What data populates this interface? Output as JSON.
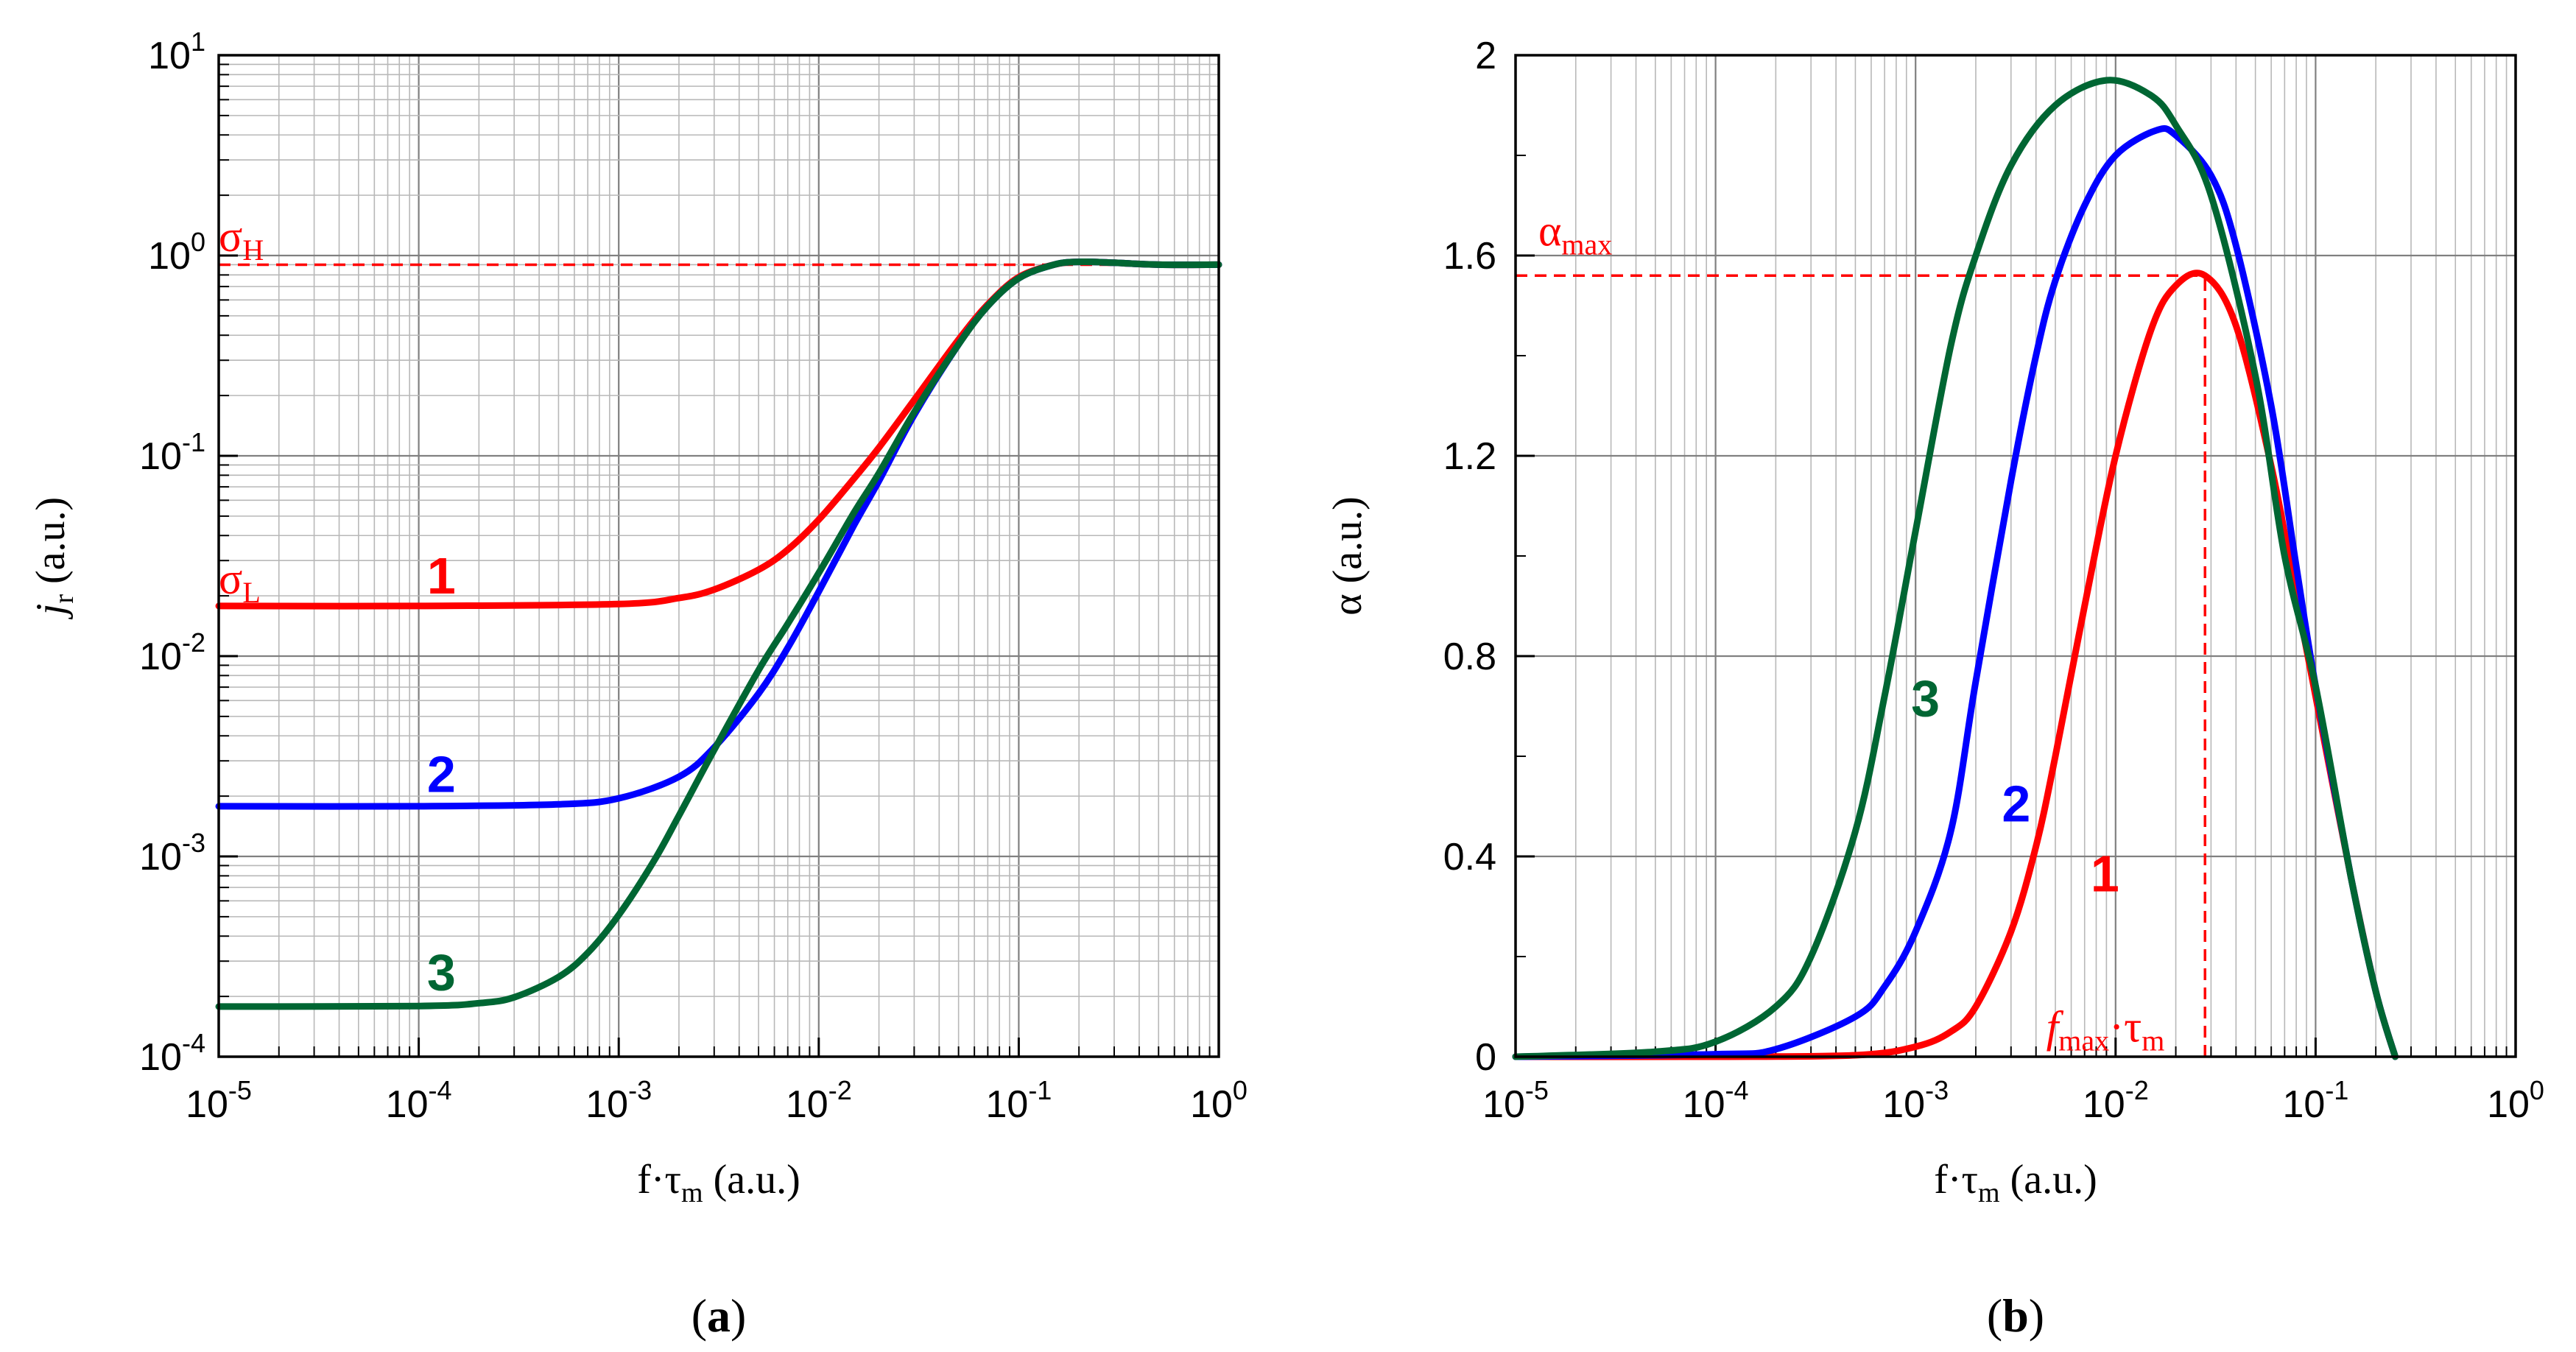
{
  "chart_data": [
    {
      "type": "line",
      "panel_label": "(a)",
      "panel_letter": "a",
      "xscale": "log",
      "yscale": "log",
      "xlim": [
        1e-05,
        1
      ],
      "ylim": [
        0.0001,
        10
      ],
      "xticks": [
        {
          "value": 1e-05,
          "base": "10",
          "exp": "-5"
        },
        {
          "value": 0.0001,
          "base": "10",
          "exp": "-4"
        },
        {
          "value": 0.001,
          "base": "10",
          "exp": "-3"
        },
        {
          "value": 0.01,
          "base": "10",
          "exp": "-2"
        },
        {
          "value": 0.1,
          "base": "10",
          "exp": "-1"
        },
        {
          "value": 1,
          "base": "10",
          "exp": "0"
        }
      ],
      "yticks": [
        {
          "value": 0.0001,
          "base": "10",
          "exp": "-4"
        },
        {
          "value": 0.001,
          "base": "10",
          "exp": "-3"
        },
        {
          "value": 0.01,
          "base": "10",
          "exp": "-2"
        },
        {
          "value": 0.1,
          "base": "10",
          "exp": "-1"
        },
        {
          "value": 1,
          "base": "10",
          "exp": "0"
        },
        {
          "value": 10,
          "base": "10",
          "exp": "1"
        }
      ],
      "xlabel": {
        "main": "f·τ",
        "sub": "m",
        "unit": " (a.u.)"
      },
      "ylabel": {
        "main": "j",
        "sub": "r",
        "unit": " (a.u.)"
      },
      "series": [
        {
          "name": "1",
          "color": "#ff0000",
          "x": [
            1e-05,
            0.0001,
            0.001,
            0.002,
            0.003,
            0.005,
            0.007,
            0.01,
            0.015,
            0.02,
            0.03,
            0.05,
            0.07,
            0.1,
            0.15,
            0.2,
            0.3,
            0.5,
            1
          ],
          "y": [
            0.0178,
            0.0178,
            0.0182,
            0.0195,
            0.0215,
            0.027,
            0.034,
            0.048,
            0.077,
            0.11,
            0.19,
            0.38,
            0.57,
            0.78,
            0.9,
            0.93,
            0.92,
            0.9,
            0.9
          ]
        },
        {
          "name": "2",
          "color": "#0000ff",
          "x": [
            1e-05,
            0.0001,
            0.0005,
            0.001,
            0.002,
            0.003,
            0.005,
            0.007,
            0.01,
            0.015,
            0.02,
            0.03,
            0.05,
            0.07,
            0.1,
            0.15,
            0.2,
            0.3,
            0.5,
            1
          ],
          "y": [
            0.00178,
            0.00178,
            0.00182,
            0.00195,
            0.0025,
            0.0035,
            0.0065,
            0.011,
            0.021,
            0.045,
            0.075,
            0.16,
            0.36,
            0.56,
            0.77,
            0.9,
            0.93,
            0.92,
            0.9,
            0.9
          ]
        },
        {
          "name": "3",
          "color": "#006633",
          "x": [
            1e-05,
            0.0001,
            0.0002,
            0.0003,
            0.0005,
            0.0007,
            0.001,
            0.0015,
            0.002,
            0.003,
            0.005,
            0.007,
            0.01,
            0.015,
            0.02,
            0.03,
            0.05,
            0.07,
            0.1,
            0.15,
            0.2,
            0.3,
            0.5,
            1
          ],
          "y": [
            0.000178,
            0.000179,
            0.000185,
            0.000198,
            0.00025,
            0.00033,
            0.00051,
            0.00095,
            0.0016,
            0.0034,
            0.0085,
            0.0145,
            0.026,
            0.052,
            0.082,
            0.165,
            0.36,
            0.56,
            0.77,
            0.9,
            0.93,
            0.92,
            0.9,
            0.9
          ]
        }
      ],
      "guides": [
        {
          "kind": "hline",
          "y": 0.9,
          "x_from": 1e-05,
          "x_to": 0.3,
          "color": "#ff0000"
        }
      ],
      "annotations": [
        {
          "id": "sigma-h",
          "main": "σ",
          "sub": "H",
          "x": 1e-05,
          "y": 1.05,
          "color": "#ff0000",
          "font": "serif"
        },
        {
          "id": "sigma-l",
          "main": "σ",
          "sub": "L",
          "x": 1e-05,
          "y": 0.0205,
          "color": "#ff0000",
          "font": "serif"
        },
        {
          "id": "label-1",
          "main": "1",
          "x": 0.00011,
          "y": 0.0205,
          "color": "#ff0000",
          "bold": true
        },
        {
          "id": "label-2",
          "main": "2",
          "x": 0.00011,
          "y": 0.0021,
          "color": "#0000ff",
          "bold": true
        },
        {
          "id": "label-3",
          "main": "3",
          "x": 0.00011,
          "y": 0.000215,
          "color": "#006633",
          "bold": true
        }
      ]
    },
    {
      "type": "line",
      "panel_label": "(b)",
      "panel_letter": "b",
      "xscale": "log",
      "yscale": "linear",
      "xlim": [
        1e-05,
        1
      ],
      "ylim": [
        0,
        2
      ],
      "xticks": [
        {
          "value": 1e-05,
          "base": "10",
          "exp": "-5"
        },
        {
          "value": 0.0001,
          "base": "10",
          "exp": "-4"
        },
        {
          "value": 0.001,
          "base": "10",
          "exp": "-3"
        },
        {
          "value": 0.01,
          "base": "10",
          "exp": "-2"
        },
        {
          "value": 0.1,
          "base": "10",
          "exp": "-1"
        },
        {
          "value": 1,
          "base": "10",
          "exp": "0"
        }
      ],
      "yticks": [
        {
          "value": 0,
          "label": "0"
        },
        {
          "value": 0.4,
          "label": "0.4"
        },
        {
          "value": 0.8,
          "label": "0.8"
        },
        {
          "value": 1.2,
          "label": "1.2"
        },
        {
          "value": 1.6,
          "label": "1.6"
        },
        {
          "value": 2,
          "label": "2"
        }
      ],
      "yminor": [
        0.2,
        0.6,
        1.0,
        1.4,
        1.8
      ],
      "xlabel": {
        "main": "f·τ",
        "sub": "m",
        "unit": " (a.u.)"
      },
      "ylabel": {
        "main": "α",
        "sub": "",
        "unit": " (a.u.)"
      },
      "series": [
        {
          "name": "1",
          "color": "#ff0000",
          "x": [
            1e-05,
            0.0001,
            0.0005,
            0.001,
            0.0015,
            0.002,
            0.003,
            0.004,
            0.005,
            0.007,
            0.01,
            0.015,
            0.02,
            0.028,
            0.04,
            0.06,
            0.08,
            0.1,
            0.15,
            0.2,
            0.25
          ],
          "y": [
            0,
            0,
            0.003,
            0.02,
            0.05,
            0.1,
            0.25,
            0.42,
            0.6,
            0.9,
            1.2,
            1.45,
            1.54,
            1.56,
            1.46,
            1.18,
            0.92,
            0.72,
            0.36,
            0.13,
            0.0
          ]
        },
        {
          "name": "2",
          "color": "#0000ff",
          "x": [
            1e-05,
            0.0001,
            0.0002,
            0.0005,
            0.0007,
            0.001,
            0.0015,
            0.002,
            0.003,
            0.004,
            0.005,
            0.007,
            0.01,
            0.016,
            0.02,
            0.03,
            0.04,
            0.06,
            0.08,
            0.1,
            0.15,
            0.2,
            0.25
          ],
          "y": [
            0,
            0.005,
            0.015,
            0.08,
            0.14,
            0.25,
            0.45,
            0.75,
            1.15,
            1.4,
            1.55,
            1.7,
            1.8,
            1.85,
            1.84,
            1.76,
            1.62,
            1.3,
            0.98,
            0.74,
            0.36,
            0.13,
            0.0
          ]
        },
        {
          "name": "3",
          "color": "#006633",
          "x": [
            1e-05,
            5e-05,
            0.0001,
            0.0002,
            0.0003,
            0.0005,
            0.0007,
            0.001,
            0.0015,
            0.002,
            0.003,
            0.005,
            0.009,
            0.015,
            0.02,
            0.03,
            0.05,
            0.07,
            0.1,
            0.15,
            0.2,
            0.25
          ],
          "y": [
            0,
            0.01,
            0.03,
            0.1,
            0.2,
            0.45,
            0.72,
            1.05,
            1.42,
            1.6,
            1.78,
            1.9,
            1.95,
            1.92,
            1.86,
            1.72,
            1.36,
            1.0,
            0.74,
            0.36,
            0.13,
            0.0
          ]
        }
      ],
      "guides": [
        {
          "kind": "hline",
          "y": 1.56,
          "x_from": 1e-05,
          "x_to": 0.028,
          "color": "#ff0000"
        },
        {
          "kind": "vline",
          "x": 0.028,
          "y_from": 0,
          "y_to": 1.56,
          "color": "#ff0000"
        }
      ],
      "annotations": [
        {
          "id": "alpha-max",
          "main": "α",
          "sub": "max",
          "x": 1.3e-05,
          "y": 1.62,
          "color": "#ff0000",
          "font": "serif"
        },
        {
          "id": "label-3",
          "main": "3",
          "x": 0.00095,
          "y": 0.68,
          "color": "#006633",
          "bold": true
        },
        {
          "id": "label-2",
          "main": "2",
          "x": 0.0027,
          "y": 0.47,
          "color": "#0000ff",
          "bold": true
        },
        {
          "id": "label-1",
          "main": "1",
          "x": 0.0075,
          "y": 0.33,
          "color": "#ff0000",
          "bold": true
        },
        {
          "id": "fmax-tau",
          "main": "f",
          "sub": "max",
          "mid": "·τ",
          "sub2": "m",
          "x": 0.0045,
          "y": 0.03,
          "color": "#ff0000",
          "font": "serif"
        }
      ]
    }
  ]
}
